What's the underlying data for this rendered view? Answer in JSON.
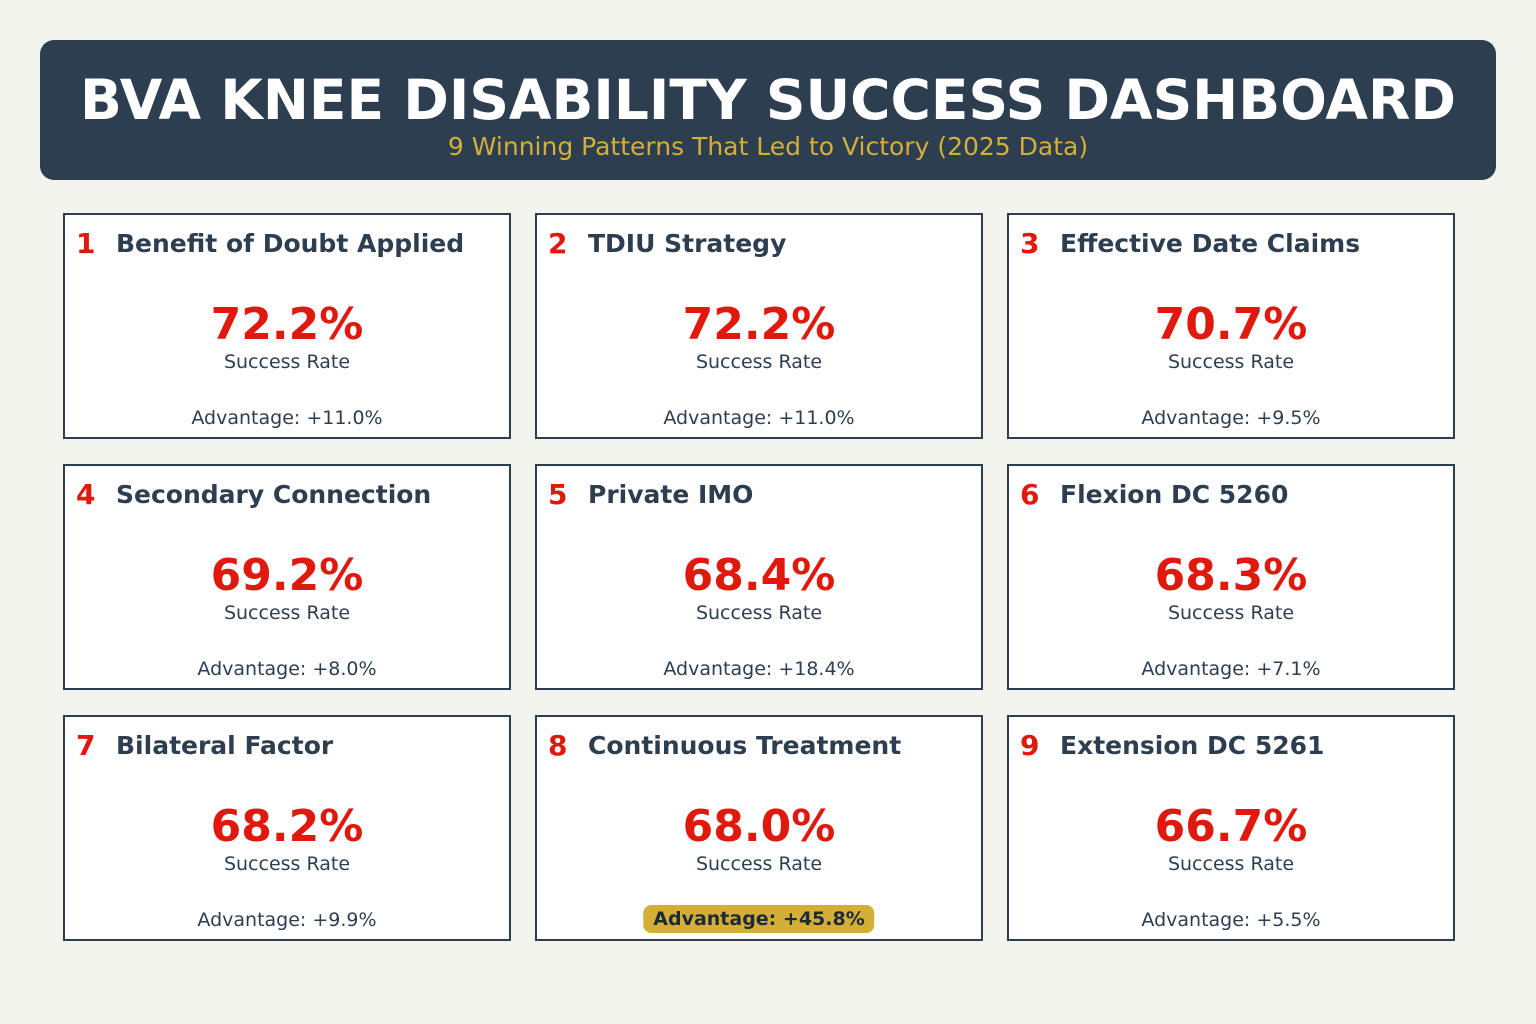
{
  "header": {
    "title": "BVA KNEE DISABILITY SUCCESS DASHBOARD",
    "subtitle": "9 Winning Patterns That Led to Victory (2025 Data)"
  },
  "cards": [
    {
      "rank": "1",
      "title": "Benefit of Doubt Applied",
      "value": "72.2%",
      "label": "Success Rate",
      "advantage": "Advantage: +11.0%"
    },
    {
      "rank": "2",
      "title": "TDIU Strategy",
      "value": "72.2%",
      "label": "Success Rate",
      "advantage": "Advantage: +11.0%"
    },
    {
      "rank": "3",
      "title": "Effective Date Claims",
      "value": "70.7%",
      "label": "Success Rate",
      "advantage": "Advantage: +9.5%"
    },
    {
      "rank": "4",
      "title": "Secondary Connection",
      "value": "69.2%",
      "label": "Success Rate",
      "advantage": "Advantage: +8.0%"
    },
    {
      "rank": "5",
      "title": "Private IMO",
      "value": "68.4%",
      "label": "Success Rate",
      "advantage": "Advantage: +18.4%"
    },
    {
      "rank": "6",
      "title": "Flexion DC 5260",
      "value": "68.3%",
      "label": "Success Rate",
      "advantage": "Advantage: +7.1%"
    },
    {
      "rank": "7",
      "title": "Bilateral Factor",
      "value": "68.2%",
      "label": "Success Rate",
      "advantage": "Advantage: +9.9%"
    },
    {
      "rank": "8",
      "title": "Continuous Treatment",
      "value": "68.0%",
      "label": "Success Rate",
      "advantage": "Advantage: +45.8%"
    },
    {
      "rank": "9",
      "title": "Extension DC 5261",
      "value": "66.7%",
      "label": "Success Rate",
      "advantage": "Advantage: +5.5%"
    }
  ]
}
